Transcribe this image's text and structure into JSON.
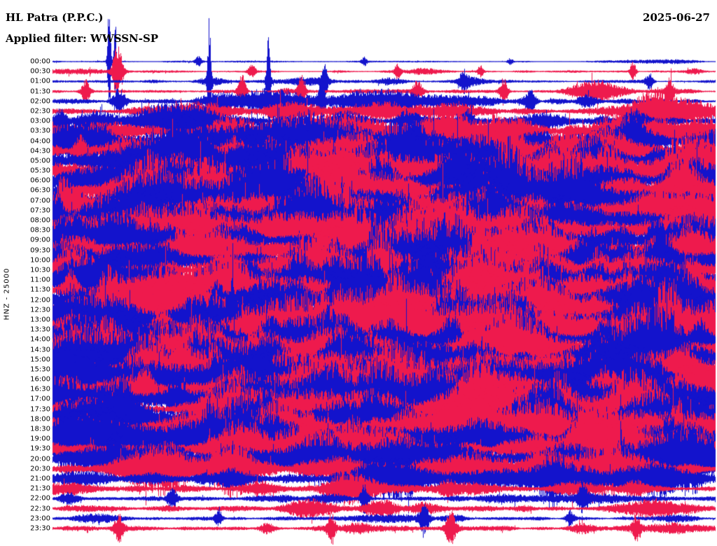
{
  "header": {
    "station": "HL Patra (P.P.C.)",
    "date": "2025-06-27",
    "filter": "Applied filter: WWSSN-SP"
  },
  "axis": {
    "left_label": "HNZ - 25000"
  },
  "chart_data": {
    "type": "line",
    "subtype": "helicorder-seismogram",
    "title": "HL Patra (P.P.C.)",
    "date": "2025-06-27",
    "filter": "WWSSN-SP",
    "channel_scale_label": "HNZ - 25000",
    "row_interval_minutes": 30,
    "grid": false,
    "legend": false,
    "trace_colors": {
      "blue": "#1313cc",
      "red": "#ee1a4d"
    },
    "rows": [
      {
        "time": "00:00",
        "color": "blue",
        "amplitude": 1.2,
        "bursts": 2,
        "events": [
          {
            "x": 0.085,
            "gain": 90,
            "w": 1.6
          },
          {
            "x": 0.094,
            "gain": 60,
            "w": 1.4
          },
          {
            "x": 0.22,
            "gain": 7,
            "w": 3
          },
          {
            "x": 0.47,
            "gain": 5,
            "w": 3
          },
          {
            "x": 0.69,
            "gain": 4,
            "w": 3
          }
        ]
      },
      {
        "time": "00:30",
        "color": "red",
        "amplitude": 1.6,
        "bursts": 3,
        "events": [
          {
            "x": 0.098,
            "gain": 24,
            "w": 5
          },
          {
            "x": 0.3,
            "gain": 6,
            "w": 4
          },
          {
            "x": 0.52,
            "gain": 7,
            "w": 3
          },
          {
            "x": 0.645,
            "gain": 5,
            "w": 3
          },
          {
            "x": 0.875,
            "gain": 9,
            "w": 3
          }
        ]
      },
      {
        "time": "01:00",
        "color": "blue",
        "amplitude": 2.2,
        "bursts": 4,
        "events": [
          {
            "x": 0.236,
            "gain": 45,
            "w": 1.8
          },
          {
            "x": 0.325,
            "gain": 30,
            "w": 2
          },
          {
            "x": 0.41,
            "gain": 10,
            "w": 3
          },
          {
            "x": 0.62,
            "gain": 6,
            "w": 4
          },
          {
            "x": 0.9,
            "gain": 5,
            "w": 4
          }
        ]
      },
      {
        "time": "01:30",
        "color": "red",
        "amplitude": 2.8,
        "bursts": 5,
        "events": [
          {
            "x": 0.05,
            "gain": 6,
            "w": 4
          },
          {
            "x": 0.285,
            "gain": 9,
            "w": 4
          },
          {
            "x": 0.375,
            "gain": 8,
            "w": 4
          },
          {
            "x": 0.55,
            "gain": 5,
            "w": 5
          },
          {
            "x": 0.68,
            "gain": 7,
            "w": 4
          },
          {
            "x": 0.93,
            "gain": 6,
            "w": 4
          }
        ]
      },
      {
        "time": "02:00",
        "color": "blue",
        "amplitude": 4,
        "bursts": 8,
        "events": [
          {
            "x": 0.1,
            "gain": 4,
            "w": 6
          },
          {
            "x": 0.405,
            "gain": 9,
            "w": 3
          },
          {
            "x": 0.72,
            "gain": 4,
            "w": 6
          }
        ]
      },
      {
        "time": "02:30",
        "color": "red",
        "amplitude": 5,
        "bursts": 10
      },
      {
        "time": "03:00",
        "color": "blue",
        "amplitude": 6,
        "bursts": 12
      },
      {
        "time": "03:30",
        "color": "red",
        "amplitude": 7.5,
        "bursts": 14
      },
      {
        "time": "04:00",
        "color": "blue",
        "amplitude": 9,
        "bursts": 16
      },
      {
        "time": "04:30",
        "color": "red",
        "amplitude": 10,
        "bursts": 16
      },
      {
        "time": "05:00",
        "color": "blue",
        "amplitude": 11,
        "bursts": 18
      },
      {
        "time": "05:30",
        "color": "red",
        "amplitude": 11,
        "bursts": 18
      },
      {
        "time": "06:00",
        "color": "blue",
        "amplitude": 12,
        "bursts": 18
      },
      {
        "time": "06:30",
        "color": "red",
        "amplitude": 12,
        "bursts": 18
      },
      {
        "time": "07:00",
        "color": "blue",
        "amplitude": 12,
        "bursts": 18
      },
      {
        "time": "07:30",
        "color": "red",
        "amplitude": 12,
        "bursts": 18
      },
      {
        "time": "08:00",
        "color": "blue",
        "amplitude": 11.5,
        "bursts": 18
      },
      {
        "time": "08:30",
        "color": "red",
        "amplitude": 11.5,
        "bursts": 18
      },
      {
        "time": "09:00",
        "color": "blue",
        "amplitude": 12,
        "bursts": 18
      },
      {
        "time": "09:30",
        "color": "red",
        "amplitude": 12,
        "bursts": 18
      },
      {
        "time": "10:00",
        "color": "blue",
        "amplitude": 12.5,
        "bursts": 18
      },
      {
        "time": "10:30",
        "color": "red",
        "amplitude": 12.5,
        "bursts": 18
      },
      {
        "time": "11:00",
        "color": "blue",
        "amplitude": 12.5,
        "bursts": 18
      },
      {
        "time": "11:30",
        "color": "red",
        "amplitude": 12,
        "bursts": 18
      },
      {
        "time": "12:00",
        "color": "blue",
        "amplitude": 12,
        "bursts": 18
      },
      {
        "time": "12:30",
        "color": "red",
        "amplitude": 12.5,
        "bursts": 18
      },
      {
        "time": "13:00",
        "color": "blue",
        "amplitude": 13,
        "bursts": 18,
        "events": [
          {
            "x": 0.27,
            "gain": 2.6,
            "w": 4
          }
        ]
      },
      {
        "time": "13:30",
        "color": "red",
        "amplitude": 13,
        "bursts": 18
      },
      {
        "time": "14:00",
        "color": "blue",
        "amplitude": 12.5,
        "bursts": 18
      },
      {
        "time": "14:30",
        "color": "red",
        "amplitude": 12.5,
        "bursts": 18
      },
      {
        "time": "15:00",
        "color": "blue",
        "amplitude": 12.5,
        "bursts": 18
      },
      {
        "time": "15:30",
        "color": "red",
        "amplitude": 12.5,
        "bursts": 18
      },
      {
        "time": "16:00",
        "color": "blue",
        "amplitude": 12,
        "bursts": 18
      },
      {
        "time": "16:30",
        "color": "red",
        "amplitude": 12,
        "bursts": 18
      },
      {
        "time": "17:00",
        "color": "blue",
        "amplitude": 12,
        "bursts": 18
      },
      {
        "time": "17:30",
        "color": "red",
        "amplitude": 11.5,
        "bursts": 18
      },
      {
        "time": "18:00",
        "color": "blue",
        "amplitude": 11.5,
        "bursts": 18
      },
      {
        "time": "18:30",
        "color": "red",
        "amplitude": 11,
        "bursts": 18
      },
      {
        "time": "19:00",
        "color": "blue",
        "amplitude": 10.5,
        "bursts": 18
      },
      {
        "time": "19:30",
        "color": "red",
        "amplitude": 10,
        "bursts": 18
      },
      {
        "time": "20:00",
        "color": "blue",
        "amplitude": 9,
        "bursts": 16
      },
      {
        "time": "20:30",
        "color": "red",
        "amplitude": 8.5,
        "bursts": 14
      },
      {
        "time": "21:00",
        "color": "blue",
        "amplitude": 8,
        "bursts": 12
      },
      {
        "time": "21:30",
        "color": "red",
        "amplitude": 5,
        "bursts": 8
      },
      {
        "time": "22:00",
        "color": "blue",
        "amplitude": 3.5,
        "bursts": 5,
        "events": [
          {
            "x": 0.18,
            "gain": 5,
            "w": 5
          },
          {
            "x": 0.47,
            "gain": 6,
            "w": 4
          },
          {
            "x": 0.8,
            "gain": 5,
            "w": 5
          }
        ]
      },
      {
        "time": "22:30",
        "color": "red",
        "amplitude": 4.5,
        "bursts": 6
      },
      {
        "time": "23:00",
        "color": "blue",
        "amplitude": 2.5,
        "bursts": 4,
        "events": [
          {
            "x": 0.25,
            "gain": 5,
            "w": 4
          },
          {
            "x": 0.56,
            "gain": 8,
            "w": 5
          },
          {
            "x": 0.78,
            "gain": 4,
            "w": 4
          }
        ]
      },
      {
        "time": "23:30",
        "color": "red",
        "amplitude": 3.5,
        "bursts": 5,
        "events": [
          {
            "x": 0.1,
            "gain": 5,
            "w": 5
          },
          {
            "x": 0.42,
            "gain": 6,
            "w": 4
          },
          {
            "x": 0.6,
            "gain": 7,
            "w": 5
          },
          {
            "x": 0.88,
            "gain": 5,
            "w": 4
          }
        ]
      }
    ]
  }
}
